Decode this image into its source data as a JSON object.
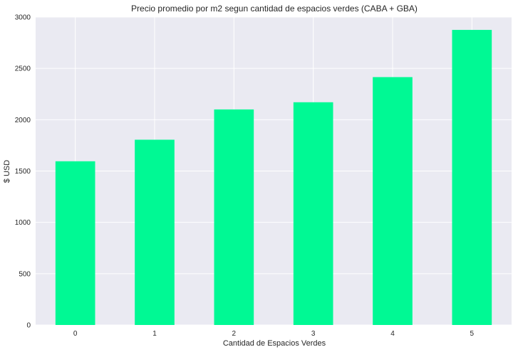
{
  "chart_data": {
    "type": "bar",
    "title": "Precio promedio por m2 segun cantidad de espacios verdes (CABA + GBA)",
    "xlabel": "Cantidad de Espacios Verdes",
    "ylabel": "$ USD",
    "categories": [
      "0",
      "1",
      "2",
      "3",
      "4",
      "5"
    ],
    "values": [
      1595,
      1805,
      2100,
      2170,
      2415,
      2875
    ],
    "ylim": [
      0,
      3000
    ],
    "yticks": [
      0,
      500,
      1000,
      1500,
      2000,
      2500,
      3000
    ],
    "grid": true,
    "legend": "none"
  },
  "colors": {
    "bar": "#00f994",
    "plot_background": "#eaeaf2",
    "grid": "#ffffff"
  }
}
